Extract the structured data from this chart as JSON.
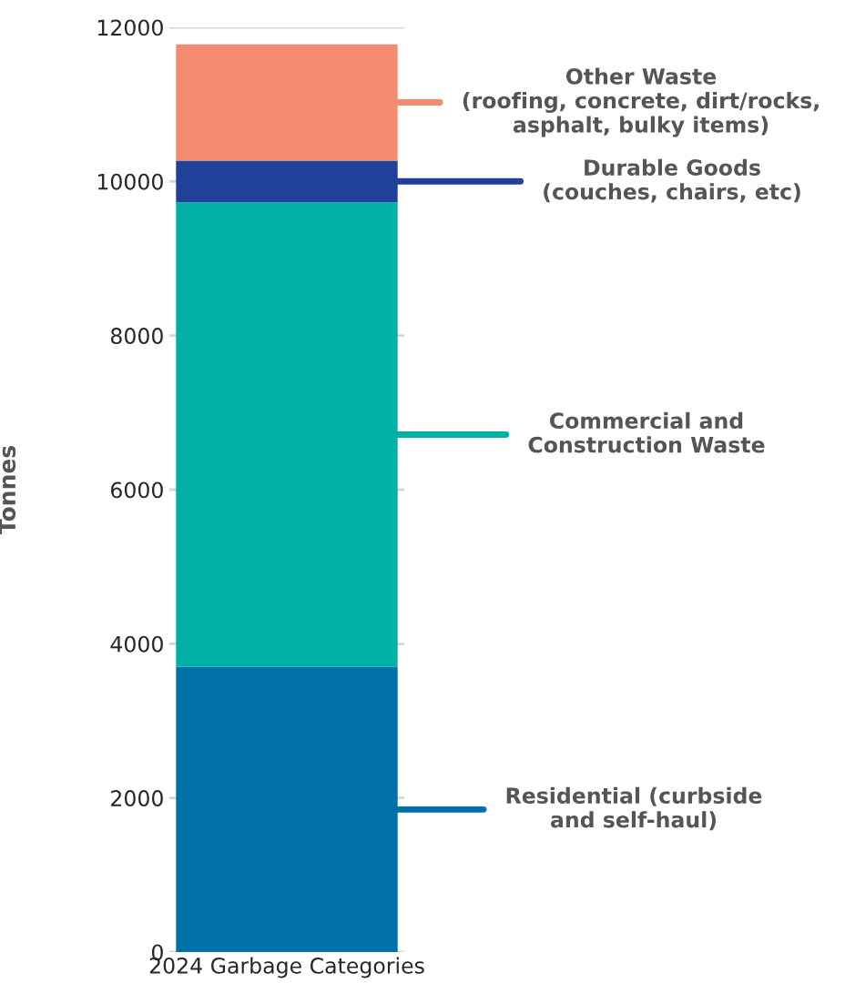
{
  "chart_data": {
    "type": "bar",
    "stacked": true,
    "categories": [
      "2024 Garbage Categories"
    ],
    "ylabel": "Tonnes",
    "ylim": [
      0,
      12000
    ],
    "yticks": [
      0,
      2000,
      4000,
      6000,
      8000,
      10000,
      12000
    ],
    "grid": "y",
    "series": [
      {
        "name": "Residential (curbside\nand self-haul)",
        "color": "#0070a8",
        "values": [
          3700
        ]
      },
      {
        "name": "Commercial and\nConstruction Waste",
        "color": "#00b0a4",
        "values": [
          6030
        ]
      },
      {
        "name": "Durable Goods\n(couches, chairs, etc)",
        "color": "#21409a",
        "values": [
          540
        ]
      },
      {
        "name": "Other Waste\n(roofing, concrete, dirt/rocks,\nasphalt, bulky items)",
        "color": "#f28b6f",
        "values": [
          1510
        ]
      }
    ]
  }
}
